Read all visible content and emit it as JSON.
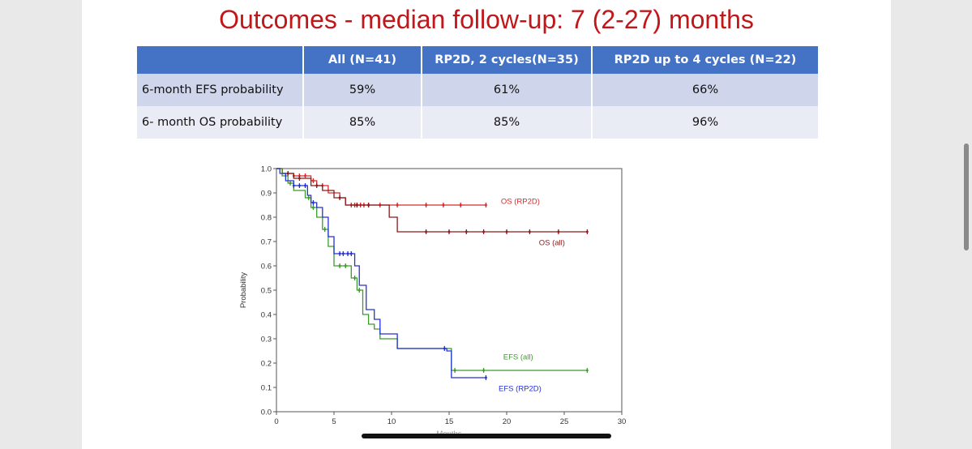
{
  "slide": {
    "title": "Outcomes - median follow-up: 7 (2-27) months"
  },
  "table": {
    "headers": [
      "",
      "All (N=41)",
      "RP2D, 2 cycles(N=35)",
      "RP2D up to 4 cycles (N=22)"
    ],
    "rows": [
      {
        "label": "6-month EFS probability",
        "values": [
          "59%",
          "61%",
          "66%"
        ]
      },
      {
        "label": "6- month OS probability",
        "values": [
          "85%",
          "85%",
          "96%"
        ]
      }
    ]
  },
  "chart_data": {
    "type": "line",
    "title": "",
    "xlabel": "Months",
    "ylabel": "Probability",
    "xlim": [
      0,
      30
    ],
    "ylim": [
      0,
      1.0
    ],
    "xticks": [
      0,
      5,
      10,
      15,
      20,
      25,
      30
    ],
    "yticks": [
      "0.0",
      "0.1",
      "0.2",
      "0.3",
      "0.4",
      "0.5",
      "0.6",
      "0.7",
      "0.8",
      "0.9",
      "1.0"
    ],
    "series": [
      {
        "name": "OS (RP2D)",
        "color": "#d42a2a",
        "steps": [
          [
            0,
            1.0
          ],
          [
            0.5,
            0.98
          ],
          [
            1.5,
            0.97
          ],
          [
            3,
            0.95
          ],
          [
            3.5,
            0.93
          ],
          [
            4.5,
            0.9
          ],
          [
            5.5,
            0.88
          ],
          [
            6,
            0.85
          ],
          [
            18.2,
            0.85
          ]
        ],
        "censors": [
          1,
          1.5,
          2,
          2.5,
          3.2,
          4,
          6.5,
          6.8,
          7,
          7.3,
          7.6,
          8,
          9,
          10.5,
          13,
          14.5,
          16,
          18.2
        ]
      },
      {
        "name": "OS (all)",
        "color": "#8b1a1a",
        "steps": [
          [
            0,
            1.0
          ],
          [
            0.5,
            0.98
          ],
          [
            1.5,
            0.96
          ],
          [
            3,
            0.93
          ],
          [
            4,
            0.91
          ],
          [
            5,
            0.88
          ],
          [
            6,
            0.85
          ],
          [
            9.8,
            0.8
          ],
          [
            10.5,
            0.74
          ],
          [
            27,
            0.74
          ]
        ],
        "censors": [
          1,
          2,
          3.5,
          5.5,
          7,
          8,
          13,
          15,
          16.5,
          18,
          20,
          22,
          24.5,
          27
        ]
      },
      {
        "name": "EFS (all)",
        "color": "#3c9a2d",
        "steps": [
          [
            0,
            1.0
          ],
          [
            0.5,
            0.97
          ],
          [
            1,
            0.94
          ],
          [
            1.5,
            0.91
          ],
          [
            2.5,
            0.88
          ],
          [
            3,
            0.84
          ],
          [
            3.5,
            0.8
          ],
          [
            4,
            0.75
          ],
          [
            4.5,
            0.68
          ],
          [
            5,
            0.6
          ],
          [
            6.5,
            0.55
          ],
          [
            7,
            0.5
          ],
          [
            7.5,
            0.4
          ],
          [
            8,
            0.36
          ],
          [
            8.5,
            0.34
          ],
          [
            9,
            0.3
          ],
          [
            10.5,
            0.26
          ],
          [
            15.2,
            0.17
          ],
          [
            27,
            0.17
          ]
        ],
        "censors": [
          1.2,
          2.8,
          3.2,
          4.2,
          5.5,
          6,
          6.8,
          7.2,
          15.5,
          18,
          27
        ]
      },
      {
        "name": "EFS (RP2D)",
        "color": "#2432d4",
        "steps": [
          [
            0,
            1.0
          ],
          [
            0.3,
            0.98
          ],
          [
            0.8,
            0.95
          ],
          [
            1.5,
            0.93
          ],
          [
            2.7,
            0.89
          ],
          [
            3,
            0.86
          ],
          [
            3.5,
            0.84
          ],
          [
            4,
            0.8
          ],
          [
            4.5,
            0.72
          ],
          [
            5,
            0.65
          ],
          [
            6.8,
            0.6
          ],
          [
            7.2,
            0.52
          ],
          [
            7.8,
            0.42
          ],
          [
            8.5,
            0.38
          ],
          [
            9,
            0.32
          ],
          [
            10.5,
            0.26
          ],
          [
            14.8,
            0.25
          ],
          [
            15.2,
            0.14
          ],
          [
            18.2,
            0.14
          ]
        ],
        "censors": [
          1.5,
          2,
          2.5,
          3.2,
          5.5,
          5.8,
          6.2,
          6.5,
          14.6,
          18.2
        ]
      }
    ],
    "labels": [
      "OS (RP2D)",
      "OS (all)",
      "EFS (all)",
      "EFS (RP2D)"
    ]
  }
}
